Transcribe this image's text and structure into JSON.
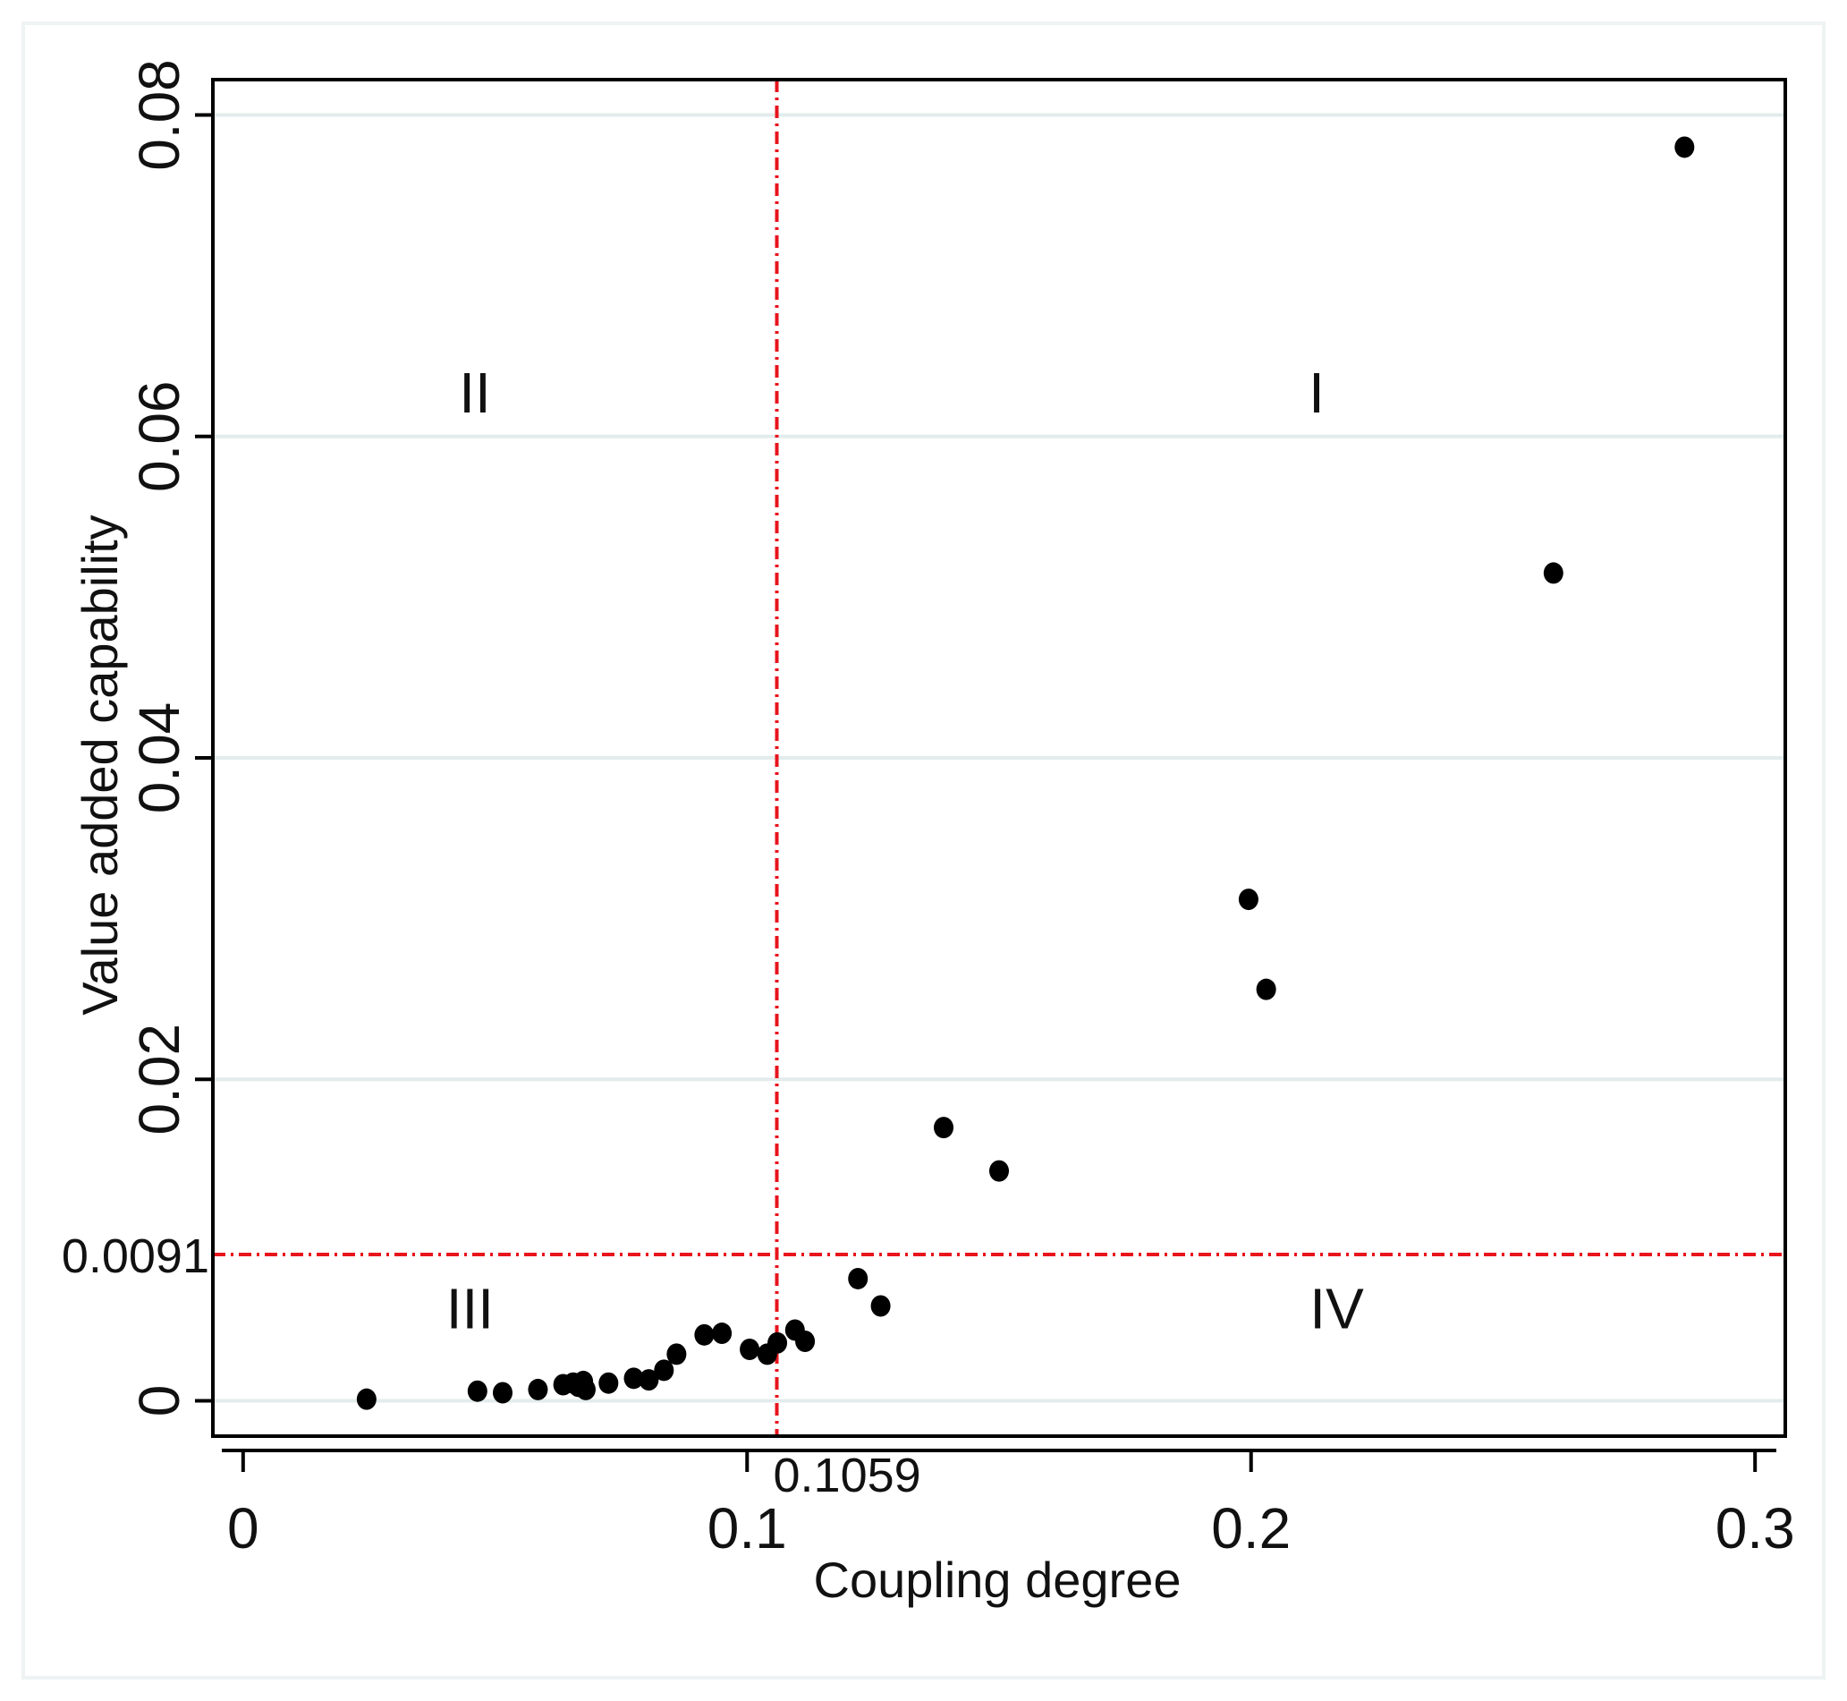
{
  "chart_data": {
    "type": "scatter",
    "title": "",
    "xlabel": "Coupling degree",
    "ylabel": "Value added capability",
    "xlim": [
      -0.006,
      0.306
    ],
    "ylim": [
      -0.0022,
      0.0822
    ],
    "xticks": [
      0,
      0.1,
      0.2,
      0.3
    ],
    "xtick_labels": [
      "0",
      "0.1",
      "0.2",
      "0.3"
    ],
    "yticks": [
      0,
      0.02,
      0.04,
      0.06,
      0.08
    ],
    "ytick_labels": [
      "0",
      "0.02",
      "0.04",
      "0.06",
      "0.08"
    ],
    "grid": "horizontal",
    "reference_lines": {
      "x": {
        "value": 0.1059,
        "label": "0.1059",
        "color": "#e8141c"
      },
      "y": {
        "value": 0.0091,
        "label": "0.0091",
        "color": "#e8141c"
      }
    },
    "quadrants": [
      {
        "label": "II",
        "x": 0.046,
        "y": 0.0615
      },
      {
        "label": "I",
        "x": 0.213,
        "y": 0.0615
      },
      {
        "label": "III",
        "x": 0.045,
        "y": 0.0045
      },
      {
        "label": "IV",
        "x": 0.217,
        "y": 0.0045
      }
    ],
    "series": [
      {
        "name": "points",
        "color": "#000000",
        "points": [
          [
            0.0245,
            0.0001
          ],
          [
            0.0465,
            0.0006
          ],
          [
            0.0515,
            0.0005
          ],
          [
            0.0585,
            0.0007
          ],
          [
            0.0635,
            0.001
          ],
          [
            0.0655,
            0.0011
          ],
          [
            0.0665,
            0.0009
          ],
          [
            0.0675,
            0.0012
          ],
          [
            0.068,
            0.0007
          ],
          [
            0.0725,
            0.0011
          ],
          [
            0.0775,
            0.0014
          ],
          [
            0.0805,
            0.0013
          ],
          [
            0.0835,
            0.0019
          ],
          [
            0.086,
            0.0029
          ],
          [
            0.0915,
            0.0041
          ],
          [
            0.095,
            0.0042
          ],
          [
            0.1005,
            0.0032
          ],
          [
            0.104,
            0.0029
          ],
          [
            0.106,
            0.0036
          ],
          [
            0.1095,
            0.0044
          ],
          [
            0.1115,
            0.0037
          ],
          [
            0.122,
            0.0076
          ],
          [
            0.1265,
            0.0059
          ],
          [
            0.139,
            0.017
          ],
          [
            0.15,
            0.0143
          ],
          [
            0.1995,
            0.0312
          ],
          [
            0.203,
            0.0256
          ],
          [
            0.26,
            0.0515
          ],
          [
            0.286,
            0.078
          ]
        ]
      }
    ]
  }
}
